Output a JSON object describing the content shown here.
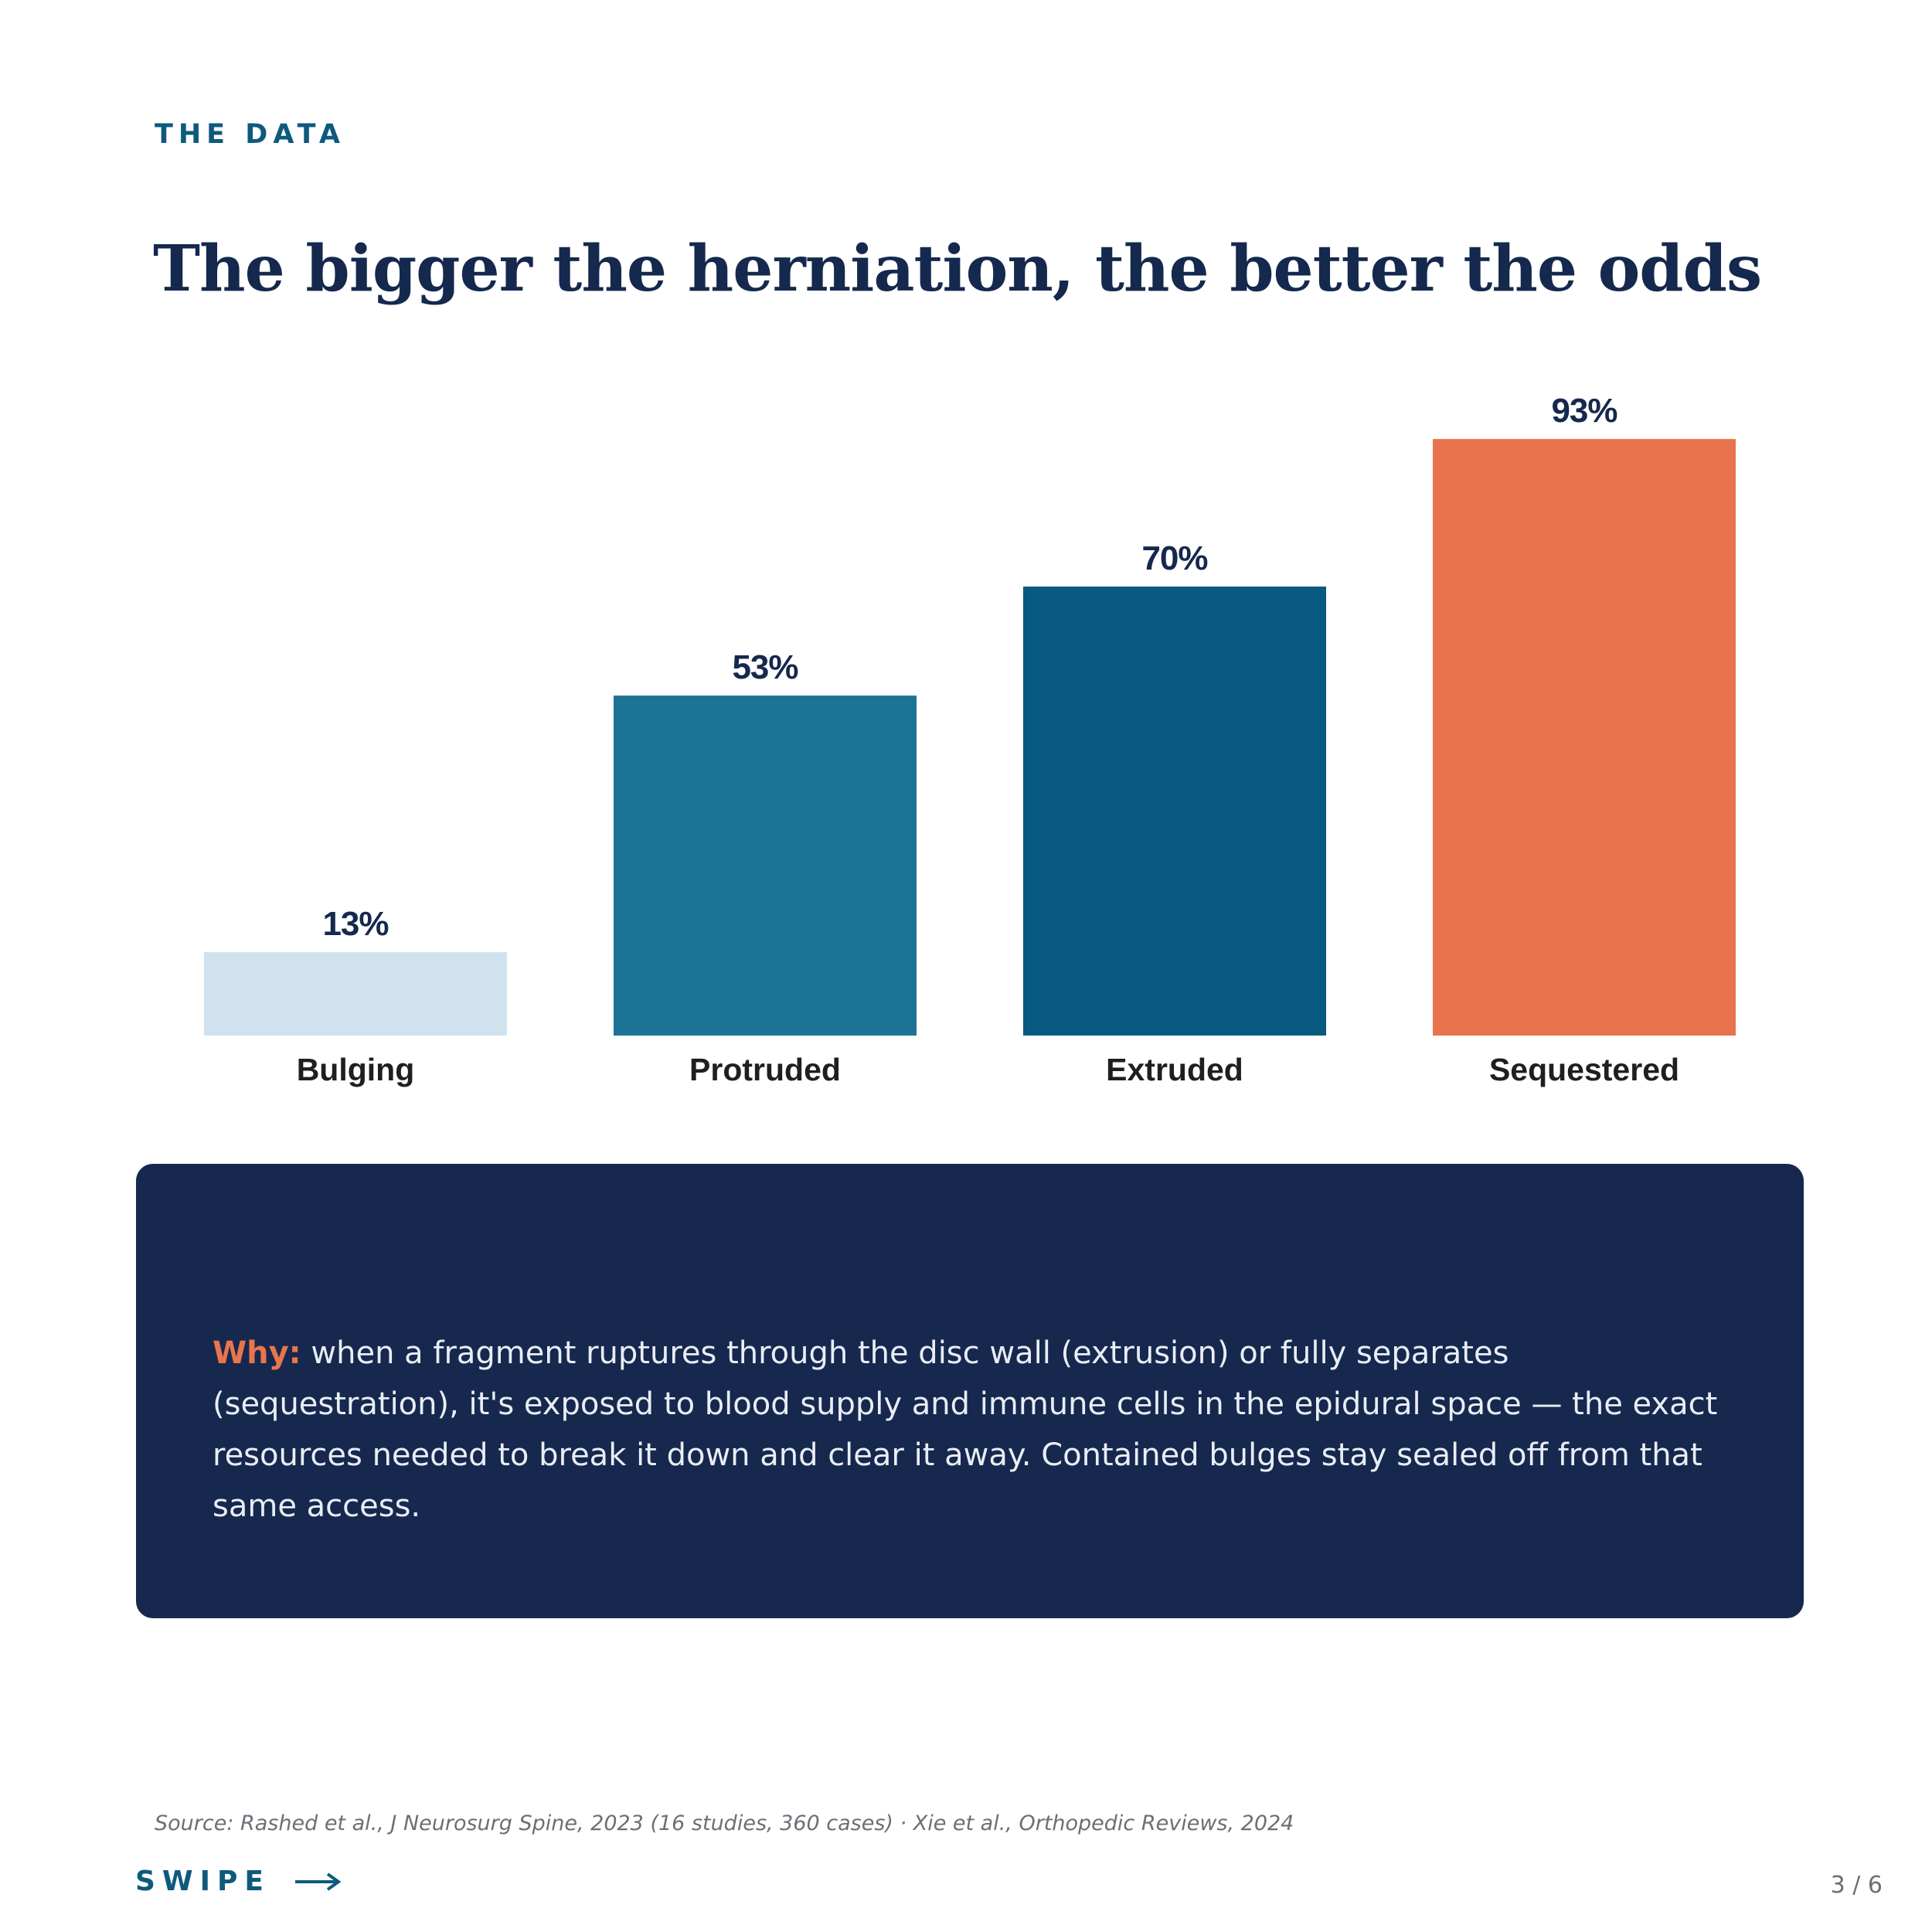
{
  "header": {
    "eyebrow": "THE DATA",
    "title": "The bigger the herniation, the better the odds"
  },
  "chart_data": {
    "type": "bar",
    "categories": [
      "Bulging",
      "Protruded",
      "Extruded",
      "Sequestered"
    ],
    "values": [
      13,
      53,
      70,
      93
    ],
    "value_labels": [
      "13%",
      "53%",
      "70%",
      "93%"
    ],
    "colors": [
      "#cfe2ee",
      "#1d7394",
      "#085a80",
      "#e8734c"
    ],
    "ylim": [
      0,
      100
    ],
    "title": "",
    "xlabel": "",
    "ylabel": "",
    "grid": false,
    "legend": "none"
  },
  "callout": {
    "lead": "Why:",
    "body": " when a fragment ruptures through the disc wall (extrusion) or fully separates (sequestration), it's exposed to blood supply and immune cells in the epidural space — the exact resources needed to break it down and clear it away. Contained bulges stay sealed off from that same access."
  },
  "footer": {
    "source": "Source: Rashed et al., J Neurosurg Spine, 2023 (16 studies, 360 cases) · Xie et al., Orthopedic Reviews, 2024",
    "swipe_label": "SWIPE",
    "swipe_icon": "arrow-right-icon",
    "page_counter": "3 / 6"
  },
  "colors": {
    "accent": "#e8734c",
    "navy": "#16284e",
    "teal": "#0e5a7d"
  }
}
